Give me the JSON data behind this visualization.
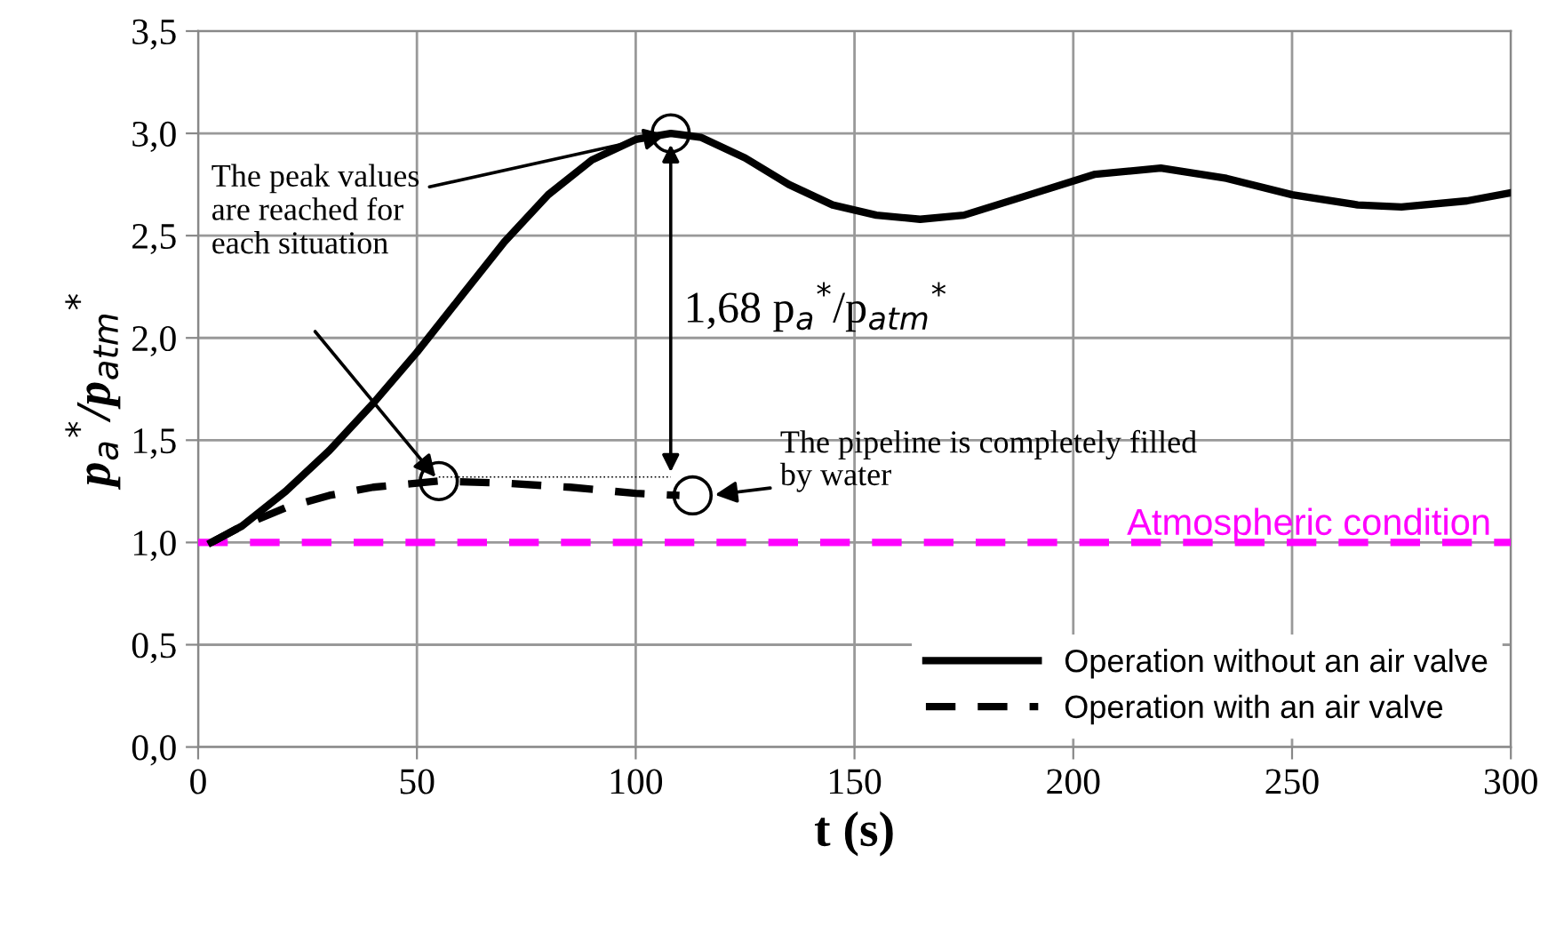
{
  "chart_data": {
    "type": "line",
    "xlabel": "t (s)",
    "ylabel": "p$_{a}$$^{*}$/p$_{atm}$$^{*}$",
    "xlim": [
      0,
      300
    ],
    "xticks": [
      0,
      50,
      100,
      150,
      200,
      250,
      300
    ],
    "ylim": [
      0,
      3.5
    ],
    "yticks": [
      {
        "value": 0,
        "label": "0,0"
      },
      {
        "value": 0.5,
        "label": "0,5"
      },
      {
        "value": 1,
        "label": "1,0"
      },
      {
        "value": 1.5,
        "label": "1,5"
      },
      {
        "value": 2,
        "label": "2,0"
      },
      {
        "value": 2.5,
        "label": "2,5"
      },
      {
        "value": 3,
        "label": "3,0"
      },
      {
        "value": 3.5,
        "label": "3,5"
      }
    ],
    "grid": true,
    "legend": "bottom right",
    "series": [
      {
        "name": "Operation without an air valve",
        "color": "#000000",
        "line_style": "solid",
        "x": [
          3,
          10,
          20,
          30,
          40,
          50,
          60,
          70,
          80,
          90,
          100,
          108,
          115,
          125,
          135,
          145,
          155,
          165,
          175,
          190,
          205,
          220,
          235,
          250,
          265,
          275,
          290,
          300
        ],
        "values": [
          1.0,
          1.08,
          1.25,
          1.45,
          1.68,
          1.93,
          2.2,
          2.47,
          2.7,
          2.87,
          2.97,
          3.0,
          2.98,
          2.88,
          2.75,
          2.65,
          2.6,
          2.58,
          2.6,
          2.7,
          2.8,
          2.83,
          2.78,
          2.7,
          2.65,
          2.64,
          2.67,
          2.71
        ]
      },
      {
        "name": "Operation with an air valve",
        "color": "#000000",
        "line_style": "dashed",
        "x": [
          3,
          10,
          20,
          30,
          40,
          55,
          70,
          85,
          100,
          110
        ],
        "values": [
          1.0,
          1.08,
          1.17,
          1.23,
          1.27,
          1.3,
          1.29,
          1.27,
          1.24,
          1.23
        ]
      }
    ],
    "ref_lines": [
      {
        "axis": "y",
        "value": 1,
        "label": "Atmospheric condition",
        "color": "#ff00ff",
        "line_style": "dashed"
      }
    ],
    "annotations": [
      {
        "text": "The peak values\nare reached for\neach situation",
        "x": 108,
        "y": 3.0
      },
      "1,68 p$_{a}$$^{*}$/p$_{atm}$$^{*}$",
      {
        "text": "The pipeline is completely filled\nby water",
        "x": 113,
        "y": 1.23
      }
    ]
  }
}
